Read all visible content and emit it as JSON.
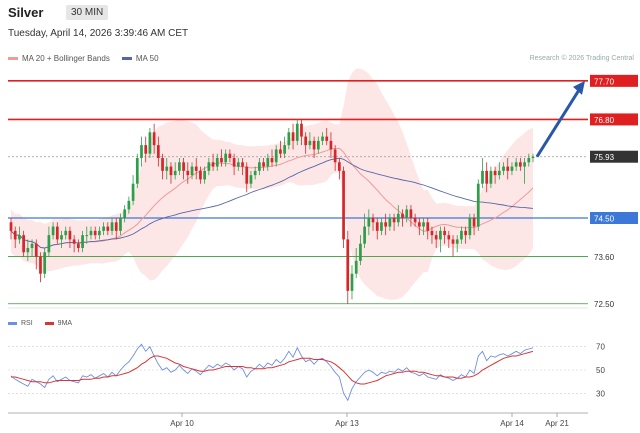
{
  "header": {
    "title": "Silver",
    "timeframe": "30 MIN",
    "datetime": "Tuesday, April 14, 2026 3:39:46 AM CET"
  },
  "legend": {
    "ma_bb_label": "MA 20 + Bollinger Bands",
    "ma50_label": "MA 50"
  },
  "watermark": "Research © 2026 Trading Central",
  "rsi_legend": {
    "rsi_label": "RSI",
    "ma_label": "9MA"
  },
  "colors": {
    "bull": "#2e9e48",
    "bear": "#d6262a",
    "band_fill": "#fde3e3",
    "ma20": "#f19a9a",
    "ma50": "#5566aa",
    "resistance": "#e02020",
    "pivot": "#3d78d8",
    "support": "#3a9a3a",
    "arrow": "#2858a6",
    "last": "#333333",
    "rsi": "#6f8fe0",
    "rsi_ma": "#d33"
  },
  "chart_data": {
    "type": "candlestick",
    "x_labels": [
      "Apr 10",
      "Apr 13",
      "Apr 14",
      "Apr 21"
    ],
    "ylim": [
      72.4,
      78.0
    ],
    "levels": [
      {
        "value": 77.7,
        "label": "77.70",
        "kind": "resistance"
      },
      {
        "value": 76.8,
        "label": "76.80",
        "kind": "resistance"
      },
      {
        "value": 75.93,
        "label": "75.93",
        "kind": "last"
      },
      {
        "value": 74.5,
        "label": "74.50",
        "kind": "pivot"
      },
      {
        "value": 73.6,
        "label": "73.60",
        "kind": "support"
      },
      {
        "value": 72.5,
        "label": "72.50",
        "kind": "support"
      }
    ],
    "projection": {
      "from": 75.93,
      "to": 77.7
    },
    "candles": [
      [
        74.4,
        74.2,
        74.5,
        74.0
      ],
      [
        74.2,
        74.0,
        74.3,
        73.8
      ],
      [
        74.0,
        74.1,
        74.3,
        73.9
      ],
      [
        74.1,
        73.7,
        74.2,
        73.6
      ],
      [
        73.7,
        73.8,
        74.0,
        73.5
      ],
      [
        73.8,
        73.9,
        74.0,
        73.6
      ],
      [
        73.9,
        73.6,
        74.0,
        73.3
      ],
      [
        73.6,
        73.2,
        73.7,
        73.0
      ],
      [
        73.2,
        73.7,
        73.8,
        73.1
      ],
      [
        73.7,
        74.1,
        74.3,
        73.6
      ],
      [
        74.1,
        74.3,
        74.4,
        74.0
      ],
      [
        74.3,
        74.0,
        74.4,
        73.9
      ],
      [
        74.0,
        74.1,
        74.2,
        73.8
      ],
      [
        74.1,
        74.2,
        74.3,
        74.0
      ],
      [
        74.2,
        74.0,
        74.3,
        73.8
      ],
      [
        74.0,
        73.9,
        74.1,
        73.7
      ],
      [
        73.9,
        73.8,
        74.0,
        73.7
      ],
      [
        73.8,
        74.1,
        74.2,
        73.7
      ],
      [
        74.1,
        74.1,
        74.3,
        73.9
      ],
      [
        74.1,
        74.2,
        74.3,
        74.0
      ],
      [
        74.2,
        74.1,
        74.3,
        74.0
      ],
      [
        74.1,
        74.2,
        74.3,
        74.0
      ],
      [
        74.2,
        74.3,
        74.4,
        74.1
      ],
      [
        74.3,
        74.2,
        74.4,
        74.1
      ],
      [
        74.2,
        74.4,
        74.5,
        74.1
      ],
      [
        74.4,
        74.2,
        74.5,
        74.0
      ],
      [
        74.2,
        74.5,
        74.6,
        74.1
      ],
      [
        74.5,
        74.7,
        74.8,
        74.4
      ],
      [
        74.7,
        74.9,
        75.0,
        74.6
      ],
      [
        74.9,
        75.3,
        75.5,
        74.8
      ],
      [
        75.3,
        75.9,
        76.0,
        75.2
      ],
      [
        75.9,
        76.2,
        76.4,
        75.7
      ],
      [
        76.2,
        76.0,
        76.4,
        75.8
      ],
      [
        76.0,
        76.5,
        76.6,
        75.9
      ],
      [
        76.5,
        76.2,
        76.7,
        76.0
      ],
      [
        76.2,
        75.9,
        76.4,
        75.7
      ],
      [
        75.9,
        75.6,
        76.0,
        75.4
      ],
      [
        75.6,
        75.7,
        75.9,
        75.4
      ],
      [
        75.7,
        75.5,
        75.8,
        75.3
      ],
      [
        75.5,
        75.6,
        75.8,
        75.4
      ],
      [
        75.6,
        75.8,
        75.9,
        75.5
      ],
      [
        75.8,
        75.6,
        75.9,
        75.4
      ],
      [
        75.6,
        75.5,
        75.8,
        75.3
      ],
      [
        75.5,
        75.7,
        75.8,
        75.4
      ],
      [
        75.7,
        75.6,
        75.9,
        75.4
      ],
      [
        75.6,
        75.4,
        75.7,
        75.3
      ],
      [
        75.4,
        75.6,
        75.7,
        75.3
      ],
      [
        75.6,
        75.8,
        75.9,
        75.5
      ],
      [
        75.8,
        75.7,
        76.0,
        75.6
      ],
      [
        75.7,
        75.9,
        76.0,
        75.6
      ],
      [
        75.9,
        75.8,
        76.1,
        75.7
      ],
      [
        75.8,
        76.0,
        76.1,
        75.7
      ],
      [
        76.0,
        75.9,
        76.1,
        75.8
      ],
      [
        75.9,
        75.7,
        76.0,
        75.5
      ],
      [
        75.7,
        75.8,
        75.9,
        75.6
      ],
      [
        75.8,
        75.7,
        75.9,
        75.5
      ],
      [
        75.7,
        75.3,
        75.8,
        75.1
      ],
      [
        75.3,
        75.5,
        75.6,
        75.2
      ],
      [
        75.5,
        75.6,
        75.7,
        75.4
      ],
      [
        75.6,
        75.8,
        75.9,
        75.5
      ],
      [
        75.8,
        75.7,
        75.9,
        75.6
      ],
      [
        75.7,
        75.9,
        76.0,
        75.6
      ],
      [
        75.9,
        75.8,
        76.1,
        75.7
      ],
      [
        75.8,
        76.1,
        76.2,
        75.7
      ],
      [
        76.1,
        76.0,
        76.3,
        75.9
      ],
      [
        76.0,
        76.2,
        76.4,
        75.9
      ],
      [
        76.2,
        76.5,
        76.6,
        76.1
      ],
      [
        76.5,
        76.3,
        76.7,
        76.1
      ],
      [
        76.3,
        76.7,
        76.8,
        76.2
      ],
      [
        76.7,
        76.4,
        76.8,
        76.2
      ],
      [
        76.4,
        76.2,
        76.5,
        76.0
      ],
      [
        76.2,
        76.3,
        76.5,
        76.1
      ],
      [
        76.3,
        76.1,
        76.4,
        75.9
      ],
      [
        76.1,
        76.3,
        76.4,
        76.0
      ],
      [
        76.3,
        76.4,
        76.5,
        76.2
      ],
      [
        76.4,
        76.3,
        76.6,
        76.2
      ],
      [
        76.3,
        76.1,
        76.5,
        75.9
      ],
      [
        76.1,
        75.8,
        76.2,
        75.6
      ],
      [
        75.8,
        75.6,
        75.9,
        75.4
      ],
      [
        75.6,
        74.0,
        75.7,
        73.8
      ],
      [
        74.0,
        72.8,
        74.2,
        72.5
      ],
      [
        72.8,
        73.2,
        73.4,
        72.6
      ],
      [
        73.2,
        73.5,
        73.8,
        73.1
      ],
      [
        73.5,
        73.9,
        74.1,
        73.4
      ],
      [
        73.9,
        74.3,
        74.6,
        73.8
      ],
      [
        74.3,
        74.5,
        74.7,
        74.1
      ],
      [
        74.5,
        74.4,
        74.6,
        74.2
      ],
      [
        74.4,
        74.2,
        74.5,
        74.0
      ],
      [
        74.2,
        74.4,
        74.5,
        74.1
      ],
      [
        74.4,
        74.3,
        74.6,
        74.1
      ],
      [
        74.3,
        74.5,
        74.6,
        74.2
      ],
      [
        74.5,
        74.4,
        74.6,
        74.2
      ],
      [
        74.4,
        74.6,
        74.8,
        74.3
      ],
      [
        74.6,
        74.5,
        74.7,
        74.3
      ],
      [
        74.5,
        74.7,
        74.8,
        74.4
      ],
      [
        74.7,
        74.5,
        74.8,
        74.3
      ],
      [
        74.5,
        74.4,
        74.6,
        74.3
      ],
      [
        74.4,
        74.3,
        74.5,
        74.1
      ],
      [
        74.3,
        74.4,
        74.5,
        74.1
      ],
      [
        74.4,
        74.2,
        74.5,
        74.0
      ],
      [
        74.2,
        74.1,
        74.3,
        73.9
      ],
      [
        74.1,
        74.0,
        74.2,
        73.8
      ],
      [
        74.0,
        74.2,
        74.3,
        73.7
      ],
      [
        74.2,
        74.1,
        74.3,
        73.9
      ],
      [
        74.1,
        74.0,
        74.2,
        73.8
      ],
      [
        74.0,
        73.9,
        74.1,
        73.6
      ],
      [
        73.9,
        74.0,
        74.1,
        73.7
      ],
      [
        74.0,
        74.2,
        74.3,
        73.9
      ],
      [
        74.2,
        74.1,
        74.3,
        73.9
      ],
      [
        74.1,
        74.5,
        74.6,
        74.0
      ],
      [
        74.5,
        74.3,
        74.6,
        74.1
      ],
      [
        74.3,
        75.3,
        75.4,
        74.2
      ],
      [
        75.3,
        75.6,
        75.9,
        75.2
      ],
      [
        75.6,
        75.3,
        75.8,
        75.1
      ],
      [
        75.3,
        75.6,
        75.7,
        75.2
      ],
      [
        75.6,
        75.5,
        75.7,
        75.3
      ],
      [
        75.5,
        75.6,
        75.8,
        75.4
      ],
      [
        75.6,
        75.7,
        75.8,
        75.5
      ],
      [
        75.7,
        75.6,
        75.9,
        75.4
      ],
      [
        75.6,
        75.7,
        75.8,
        75.5
      ],
      [
        75.7,
        75.8,
        75.9,
        75.6
      ],
      [
        75.8,
        75.7,
        75.9,
        75.6
      ],
      [
        75.7,
        75.8,
        75.9,
        75.3
      ],
      [
        75.8,
        75.9,
        76.0,
        75.7
      ],
      [
        75.9,
        75.93,
        76.0,
        75.8
      ]
    ],
    "rsi": {
      "ticks": [
        "70",
        "50",
        "30"
      ],
      "ylim": [
        20,
        80
      ],
      "rsi": [
        45,
        42,
        40,
        38,
        36,
        42,
        40,
        38,
        35,
        42,
        45,
        40,
        42,
        44,
        41,
        40,
        39,
        45,
        44,
        46,
        43,
        45,
        47,
        44,
        48,
        45,
        50,
        54,
        57,
        62,
        68,
        72,
        66,
        70,
        62,
        55,
        50,
        52,
        48,
        50,
        54,
        50,
        47,
        51,
        49,
        46,
        50,
        54,
        52,
        55,
        53,
        56,
        54,
        50,
        53,
        51,
        44,
        49,
        51,
        55,
        52,
        56,
        54,
        59,
        56,
        60,
        66,
        61,
        69,
        62,
        57,
        59,
        55,
        59,
        60,
        57,
        53,
        48,
        44,
        30,
        24,
        34,
        40,
        44,
        48,
        50,
        48,
        45,
        48,
        47,
        49,
        48,
        51,
        49,
        52,
        48,
        47,
        45,
        47,
        44,
        43,
        42,
        46,
        44,
        43,
        41,
        43,
        46,
        44,
        50,
        47,
        62,
        66,
        58,
        62,
        61,
        63,
        64,
        62,
        64,
        66,
        64,
        67,
        68,
        69
      ],
      "ma": [
        44,
        44,
        43,
        42,
        41,
        40,
        40,
        40,
        39,
        39,
        40,
        41,
        41,
        41,
        41,
        41,
        41,
        42,
        42,
        42,
        43,
        43,
        44,
        44,
        45,
        45,
        46,
        47,
        48,
        50,
        52,
        55,
        57,
        60,
        62,
        62,
        61,
        60,
        58,
        56,
        55,
        53,
        52,
        51,
        50,
        49,
        49,
        50,
        50,
        51,
        52,
        53,
        53,
        53,
        53,
        53,
        52,
        52,
        51,
        51,
        51,
        52,
        52,
        53,
        54,
        55,
        57,
        58,
        59,
        60,
        60,
        60,
        59,
        59,
        59,
        58,
        57,
        55,
        52,
        49,
        45,
        41,
        39,
        38,
        38,
        39,
        40,
        41,
        43,
        45,
        46,
        47,
        48,
        48,
        49,
        49,
        49,
        48,
        48,
        47,
        46,
        45,
        45,
        44,
        44,
        44,
        43,
        43,
        44,
        44,
        45,
        47,
        50,
        52,
        54,
        56,
        58,
        60,
        61,
        62,
        62,
        63,
        64,
        65,
        66
      ]
    }
  }
}
